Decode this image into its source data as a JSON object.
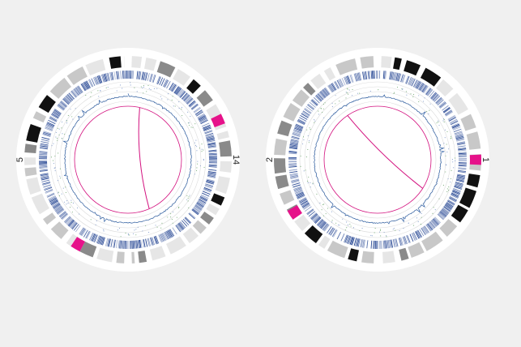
{
  "colors": {
    "background": "#f0f0f0",
    "disc": "#ffffff",
    "band_dark": "#111111",
    "band_mid": "#8a8a8a",
    "band_light": "#c8c8c8",
    "band_pale": "#e6e6e6",
    "centromere": "#e6128a",
    "gene_density": "#1d3f8f",
    "track": "#2f5fa3",
    "link": "#d3127f",
    "inner_circle": "#d3127f",
    "grid": "#dcdcdc"
  },
  "panels": [
    {
      "id": "left",
      "chromosomes": [
        {
          "label": "14",
          "start": 0.0,
          "end": 0.5
        },
        {
          "label": "5",
          "start": 0.5,
          "end": 1.0
        }
      ],
      "centromeres": [
        0.185,
        0.585
      ],
      "link": {
        "from": 0.035,
        "to": 0.435
      }
    },
    {
      "id": "right",
      "chromosomes": [
        {
          "label": "1",
          "start": 0.0,
          "end": 0.5
        },
        {
          "label": "2",
          "start": 0.5,
          "end": 1.0
        }
      ],
      "centromeres": [
        0.25,
        0.66
      ],
      "link": {
        "from": 0.905,
        "to": 0.34
      }
    }
  ]
}
